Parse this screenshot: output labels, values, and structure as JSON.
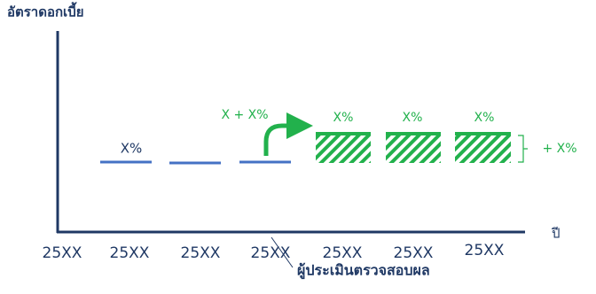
{
  "y_axis_label": "อัตราดอกเบี้ย",
  "x_axis_label": "ปี",
  "x_labels": [
    "25XX",
    "25XX",
    "25XX",
    "25XX",
    "25XX",
    "25XX",
    "25XX"
  ],
  "labels": {
    "current": "X%",
    "increase": "X + X%",
    "future": [
      "X%",
      "X%",
      "X%"
    ],
    "delta": "+ X%"
  },
  "annotation": "ผู้ประเมินตรวจสอบผล"
}
